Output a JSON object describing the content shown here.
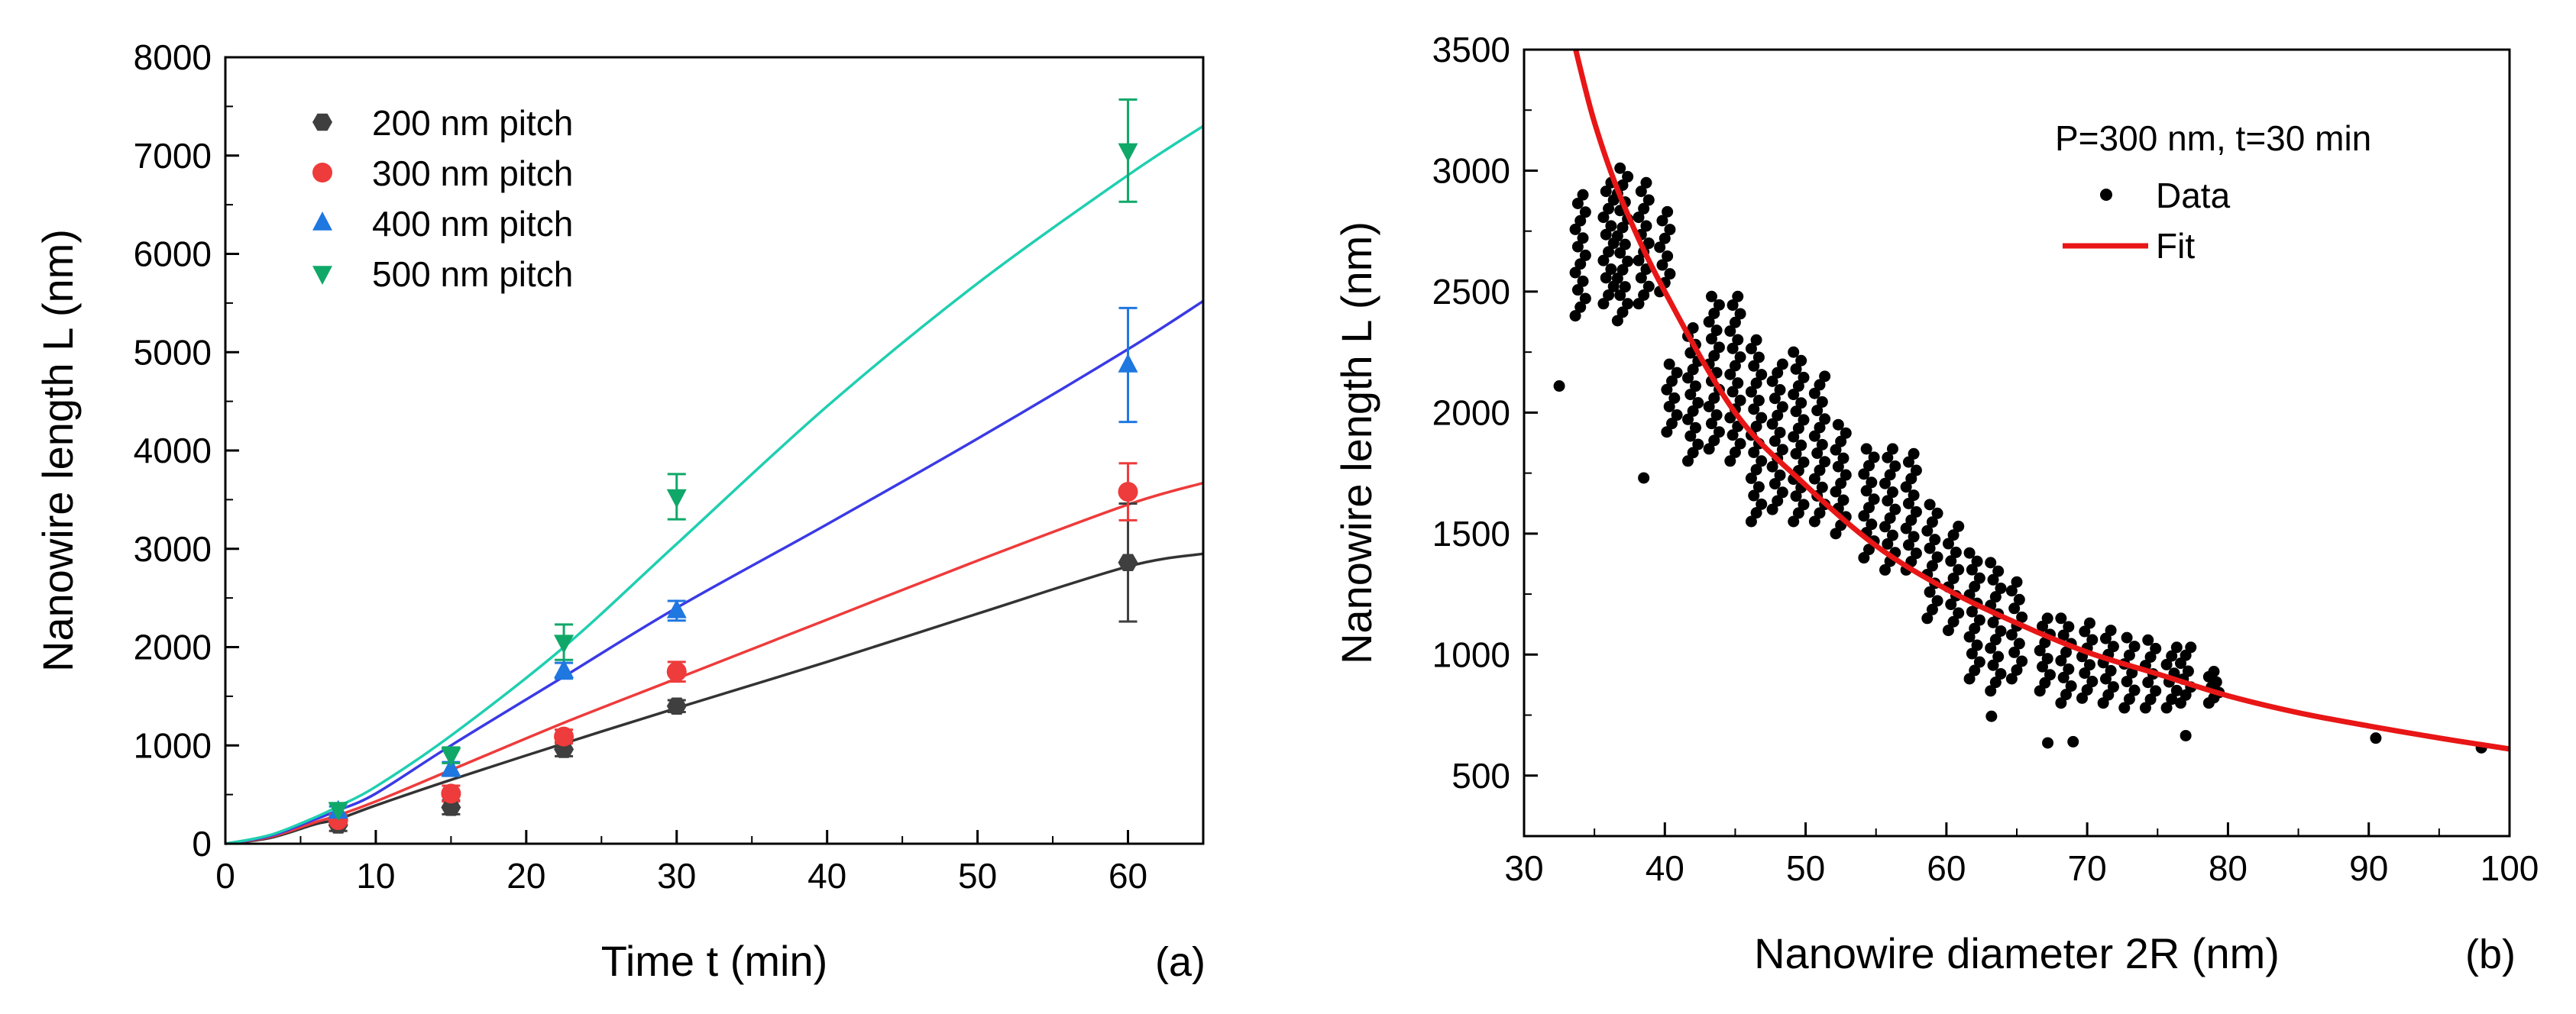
{
  "chart_data": [
    {
      "type": "scatter",
      "panel_label": "(a)",
      "xlabel": "Time t (min)",
      "ylabel": "Nanowire length L (nm)",
      "xlim": [
        0,
        65
      ],
      "ylim": [
        0,
        8000
      ],
      "xticks": [
        0,
        10,
        20,
        30,
        40,
        50,
        60
      ],
      "yticks": [
        0,
        1000,
        2000,
        3000,
        4000,
        5000,
        6000,
        7000,
        8000
      ],
      "legend_position": "top-left",
      "series": [
        {
          "name": "200 nm pitch",
          "marker": "hexagon",
          "color": "#3f3f3f",
          "line_color": "#333333",
          "x": [
            7.5,
            15,
            22.5,
            30,
            60
          ],
          "y": [
            190,
            370,
            960,
            1400,
            2860
          ],
          "err": [
            60,
            70,
            70,
            60,
            600
          ],
          "fit": [
            [
              0,
              0
            ],
            [
              3,
              60
            ],
            [
              6,
              200
            ],
            [
              7.5,
              250
            ],
            [
              10,
              390
            ],
            [
              15,
              650
            ],
            [
              22.5,
              1020
            ],
            [
              30,
              1380
            ],
            [
              40,
              1850
            ],
            [
              50,
              2340
            ],
            [
              60,
              2820
            ],
            [
              65,
              2950
            ]
          ]
        },
        {
          "name": "300 nm pitch",
          "marker": "circle",
          "color": "#ee3b3b",
          "line_color": "#ee3b3b",
          "x": [
            7.5,
            15,
            22.5,
            30,
            60
          ],
          "y": [
            240,
            510,
            1090,
            1750,
            3580
          ],
          "err": [
            60,
            80,
            70,
            100,
            290
          ],
          "fit": [
            [
              0,
              0
            ],
            [
              3,
              70
            ],
            [
              6,
              220
            ],
            [
              7.5,
              290
            ],
            [
              10,
              430
            ],
            [
              15,
              750
            ],
            [
              22.5,
              1230
            ],
            [
              30,
              1680
            ],
            [
              40,
              2280
            ],
            [
              50,
              2880
            ],
            [
              60,
              3450
            ],
            [
              65,
              3670
            ]
          ]
        },
        {
          "name": "400 nm pitch",
          "marker": "triangle-up",
          "color": "#1f77e0",
          "line_color": "#3a3ae6",
          "x": [
            7.5,
            15,
            22.5,
            30,
            60
          ],
          "y": [
            330,
            760,
            1760,
            2370,
            4870
          ],
          "err": [
            50,
            70,
            80,
            100,
            580
          ],
          "fit": [
            [
              0,
              0
            ],
            [
              3,
              80
            ],
            [
              6,
              250
            ],
            [
              7.5,
              340
            ],
            [
              10,
              510
            ],
            [
              15,
              1000
            ],
            [
              22.5,
              1700
            ],
            [
              30,
              2400
            ],
            [
              40,
              3250
            ],
            [
              50,
              4120
            ],
            [
              60,
              5030
            ],
            [
              65,
              5520
            ]
          ]
        },
        {
          "name": "500 nm pitch",
          "marker": "triangle-down",
          "color": "#10a868",
          "line_color": "#1fcfb0",
          "x": [
            7.5,
            15,
            22.5,
            30,
            60
          ],
          "y": [
            350,
            900,
            2050,
            3530,
            7050
          ],
          "err": [
            60,
            80,
            180,
            230,
            520
          ],
          "fit": [
            [
              0,
              0
            ],
            [
              3,
              90
            ],
            [
              6,
              270
            ],
            [
              7.5,
              380
            ],
            [
              10,
              580
            ],
            [
              15,
              1100
            ],
            [
              22.5,
              2000
            ],
            [
              30,
              3050
            ],
            [
              40,
              4450
            ],
            [
              50,
              5700
            ],
            [
              60,
              6800
            ],
            [
              65,
              7300
            ]
          ]
        }
      ]
    },
    {
      "type": "scatter",
      "panel_label": "(b)",
      "annotation": "P=300 nm, t=30 min",
      "xlabel": "Nanowire diameter 2R (nm)",
      "ylabel": "Nanowire length L (nm)",
      "xlim": [
        30,
        100
      ],
      "ylim": [
        250,
        3500
      ],
      "xticks": [
        30,
        40,
        50,
        60,
        70,
        80,
        90,
        100
      ],
      "yticks": [
        500,
        1000,
        1500,
        2000,
        2500,
        3000,
        3500
      ],
      "legend_position": "top-right",
      "series": [
        {
          "name": "Data",
          "marker": "dot",
          "color": "#000000",
          "columns": [
            {
              "x": 34,
              "y_min": 2400,
              "y_max": 2900
            },
            {
              "x": 36,
              "y_min": 2450,
              "y_max": 2950
            },
            {
              "x": 37,
              "y_min": 2380,
              "y_max": 3010
            },
            {
              "x": 38.5,
              "y_min": 2450,
              "y_max": 2950
            },
            {
              "x": 40,
              "y_min": 2500,
              "y_max": 2830
            },
            {
              "x": 40.5,
              "y_min": 1920,
              "y_max": 2200
            },
            {
              "x": 42,
              "y_min": 1800,
              "y_max": 2350
            },
            {
              "x": 43.5,
              "y_min": 1850,
              "y_max": 2480
            },
            {
              "x": 45,
              "y_min": 1800,
              "y_max": 2480
            },
            {
              "x": 46.5,
              "y_min": 1550,
              "y_max": 2300
            },
            {
              "x": 48,
              "y_min": 1600,
              "y_max": 2200
            },
            {
              "x": 49.5,
              "y_min": 1550,
              "y_max": 2250
            },
            {
              "x": 51,
              "y_min": 1550,
              "y_max": 2150
            },
            {
              "x": 52.5,
              "y_min": 1500,
              "y_max": 1950
            },
            {
              "x": 54.5,
              "y_min": 1400,
              "y_max": 1850
            },
            {
              "x": 56,
              "y_min": 1350,
              "y_max": 1850
            },
            {
              "x": 57.5,
              "y_min": 1350,
              "y_max": 1830
            },
            {
              "x": 59,
              "y_min": 1150,
              "y_max": 1620
            },
            {
              "x": 60.5,
              "y_min": 1100,
              "y_max": 1530
            },
            {
              "x": 62,
              "y_min": 900,
              "y_max": 1420
            },
            {
              "x": 63.5,
              "y_min": 850,
              "y_max": 1380
            },
            {
              "x": 65,
              "y_min": 900,
              "y_max": 1300
            },
            {
              "x": 67,
              "y_min": 850,
              "y_max": 1150
            },
            {
              "x": 68.5,
              "y_min": 800,
              "y_max": 1150
            },
            {
              "x": 70,
              "y_min": 820,
              "y_max": 1130
            },
            {
              "x": 71.5,
              "y_min": 800,
              "y_max": 1100
            },
            {
              "x": 73,
              "y_min": 780,
              "y_max": 1070
            },
            {
              "x": 74.5,
              "y_min": 780,
              "y_max": 1060
            },
            {
              "x": 76,
              "y_min": 780,
              "y_max": 1030
            },
            {
              "x": 77,
              "y_min": 800,
              "y_max": 1030
            },
            {
              "x": 79,
              "y_min": 800,
              "y_max": 930
            }
          ],
          "outliers": [
            [
              32.5,
              2110
            ],
            [
              38.5,
              1730
            ],
            [
              63.2,
              745
            ],
            [
              67.2,
              635
            ],
            [
              69,
              640
            ],
            [
              77,
              665
            ],
            [
              90.5,
              655
            ],
            [
              98,
              615
            ]
          ]
        },
        {
          "name": "Fit",
          "marker": "line",
          "color": "#e81616",
          "fit": [
            [
              33.5,
              3540
            ],
            [
              35,
              3200
            ],
            [
              37,
              2870
            ],
            [
              40,
              2500
            ],
            [
              45,
              2000
            ],
            [
              50,
              1700
            ],
            [
              55,
              1450
            ],
            [
              60,
              1270
            ],
            [
              65,
              1130
            ],
            [
              70,
              1010
            ],
            [
              75,
              920
            ],
            [
              80,
              830
            ],
            [
              85,
              760
            ],
            [
              90,
              705
            ],
            [
              95,
              655
            ],
            [
              100,
              610
            ]
          ]
        }
      ]
    }
  ]
}
